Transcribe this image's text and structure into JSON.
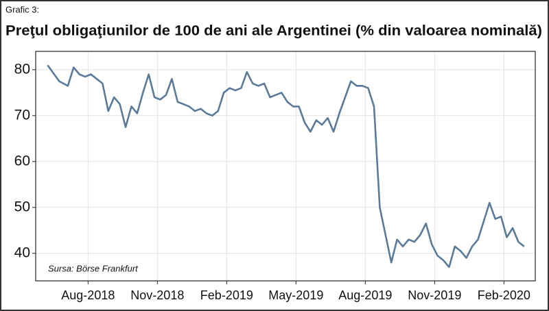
{
  "chart_data": {
    "type": "line",
    "figure_label": "Grafic 3:",
    "title": "Preţul obligaţiunilor de 100 de ani ale Argentinei (% din valoarea nominală)",
    "annotation": "Sursa: Börse Frankfurt",
    "color": "#5a7a9a",
    "grid": true,
    "x": [
      "2018-06",
      "2018-06",
      "2018-07",
      "2018-07",
      "2018-07",
      "2018-07",
      "2018-08",
      "2018-08",
      "2018-08",
      "2018-08",
      "2018-09",
      "2018-09",
      "2018-09",
      "2018-09",
      "2018-10",
      "2018-10",
      "2018-10",
      "2018-10",
      "2018-11",
      "2018-11",
      "2018-11",
      "2018-11",
      "2018-12",
      "2018-12",
      "2018-12",
      "2018-12",
      "2019-01",
      "2019-01",
      "2019-01",
      "2019-01",
      "2019-02",
      "2019-02",
      "2019-02",
      "2019-02",
      "2019-03",
      "2019-03",
      "2019-03",
      "2019-03",
      "2019-04",
      "2019-04",
      "2019-04",
      "2019-04",
      "2019-05",
      "2019-05",
      "2019-05",
      "2019-05",
      "2019-06",
      "2019-06",
      "2019-06",
      "2019-06",
      "2019-07",
      "2019-07",
      "2019-07",
      "2019-07",
      "2019-08",
      "2019-08",
      "2019-08",
      "2019-08",
      "2019-09",
      "2019-09",
      "2019-09",
      "2019-09",
      "2019-10",
      "2019-10",
      "2019-10",
      "2019-10",
      "2019-11",
      "2019-11",
      "2019-11",
      "2019-11",
      "2019-12",
      "2019-12",
      "2019-12",
      "2019-12",
      "2020-01",
      "2020-01",
      "2020-01",
      "2020-01",
      "2020-02",
      "2020-02",
      "2020-02",
      "2020-02"
    ],
    "values": [
      81,
      77.5,
      76.5,
      80.5,
      79,
      78.5,
      79,
      78,
      77,
      71,
      74,
      72.5,
      67.5,
      72,
      70.5,
      75,
      79,
      74,
      73.5,
      74.5,
      78,
      73,
      72.5,
      72,
      71,
      71.5,
      70.5,
      70,
      71,
      75,
      76,
      75.5,
      76,
      79.5,
      77,
      76.5,
      77,
      74,
      74.5,
      75,
      73,
      72,
      72,
      68.5,
      66.5,
      69,
      68,
      69.5,
      66.5,
      70.5,
      74,
      77.5,
      76.5,
      76.5,
      76,
      72,
      50,
      44,
      38,
      43,
      41.5,
      43,
      42.5,
      44,
      46.5,
      42,
      39.5,
      38.5,
      37,
      41.5,
      40.5,
      39,
      41.5,
      43,
      47,
      51,
      47.5,
      48,
      43.5,
      45.5,
      42.5,
      41.5
    ],
    "xlim": [
      "2018-06",
      "2020-03"
    ],
    "xticks": [
      {
        "value": "2018-08",
        "label": "Aug-2018"
      },
      {
        "value": "2018-11",
        "label": "Nov-2018"
      },
      {
        "value": "2019-02",
        "label": "Feb-2019"
      },
      {
        "value": "2019-05",
        "label": "May-2019"
      },
      {
        "value": "2019-08",
        "label": "Aug-2019"
      },
      {
        "value": "2019-11",
        "label": "Nov-2019"
      },
      {
        "value": "2020-02",
        "label": "Feb-2020"
      }
    ],
    "ylim": [
      34,
      84
    ],
    "yticks": [
      40,
      50,
      60,
      70,
      80
    ]
  }
}
